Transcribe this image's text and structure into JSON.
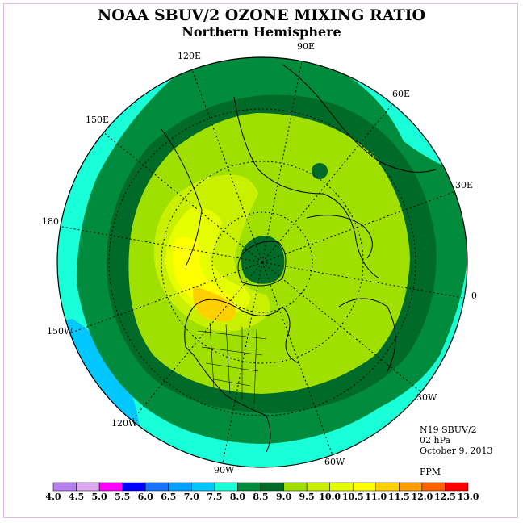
{
  "title": "NOAA SBUV/2 OZONE MIXING RATIO",
  "subtitle": "Northern Hemisphere",
  "info": {
    "satellite": "N19 SBUV/2",
    "level": "02 hPa",
    "date": "October 9, 2013",
    "units": "PPM"
  },
  "longitude_labels": [
    "90E",
    "60E",
    "30E",
    "0",
    "30W",
    "60W",
    "90W",
    "120W",
    "150W",
    "180",
    "150E",
    "120E"
  ],
  "colorbar": {
    "ticks": [
      "4.0",
      "4.5",
      "5.0",
      "5.5",
      "6.0",
      "6.5",
      "7.0",
      "7.5",
      "8.0",
      "8.5",
      "9.0",
      "9.5",
      "10.0",
      "10.5",
      "11.0",
      "11.5",
      "12.0",
      "12.5",
      "13.0"
    ],
    "colors": [
      "#b87ff0",
      "#dca8f0",
      "#ff00ff",
      "#0000ff",
      "#1874ff",
      "#00a0ff",
      "#00c8ff",
      "#19ffd8",
      "#008c3c",
      "#006a28",
      "#a0e000",
      "#c8f000",
      "#e6ff00",
      "#ffff00",
      "#ffd000",
      "#ffa000",
      "#ff6000",
      "#ff0000",
      "#8b5a2b"
    ]
  },
  "map": {
    "projection": "north polar stereographic",
    "fill_colors": {
      "outer": "#19ffd8",
      "ring_8_0": "#008c3c",
      "ring_8_5": "#006a28",
      "band_9_0": "#a0e000",
      "band_9_5": "#c8f000",
      "band_10_0": "#e6ff00",
      "band_10_5": "#ffff00",
      "band_11_0": "#ffd000",
      "pole_low": "#006a28",
      "low_region": "#00c8ff"
    }
  }
}
